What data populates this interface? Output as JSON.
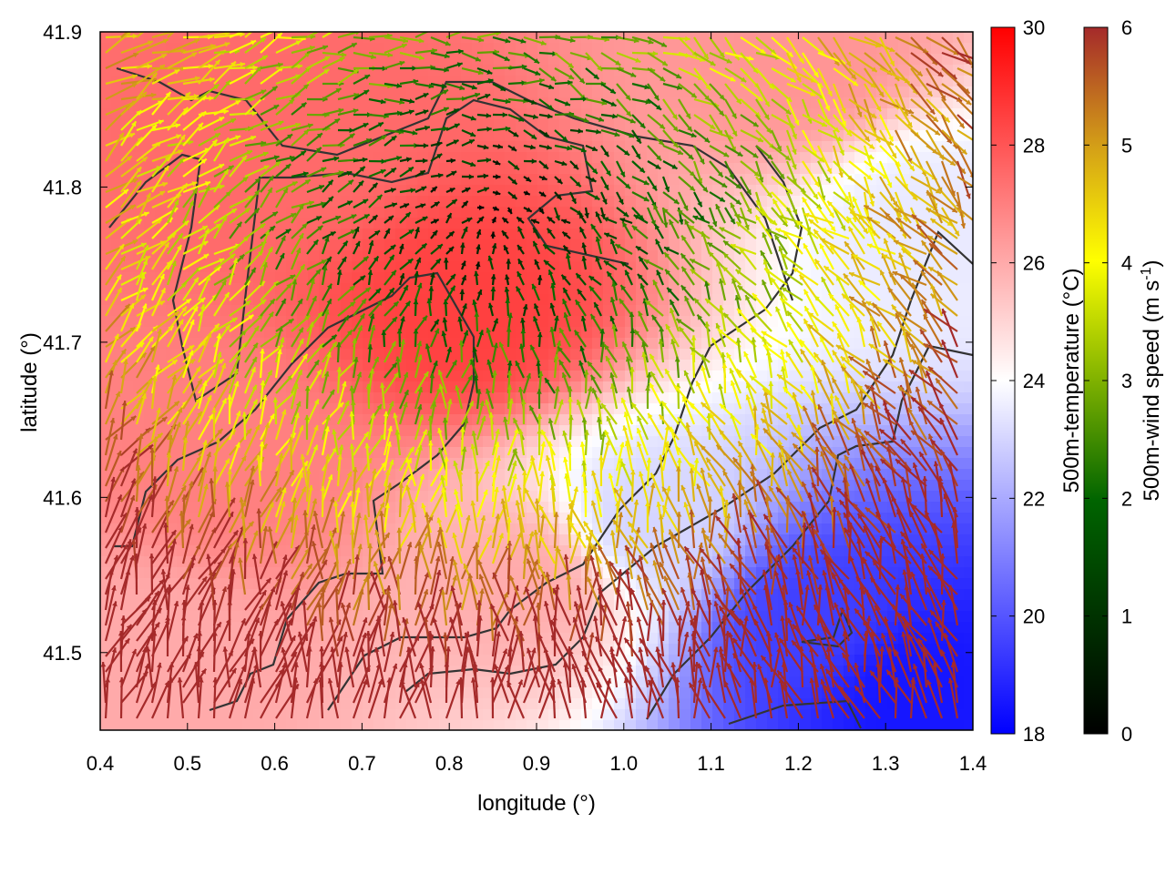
{
  "chart_data": {
    "type": "heatmap",
    "xlabel": "longitude (°)",
    "ylabel": "latitude (°)",
    "xlim": [
      0.4,
      1.4
    ],
    "ylim": [
      41.45,
      41.9
    ],
    "xticks": [
      "0.4",
      "0.5",
      "0.6",
      "0.7",
      "0.8",
      "0.9",
      "1.0",
      "1.1",
      "1.2",
      "1.3",
      "1.4"
    ],
    "yticks": [
      "41.5",
      "41.6",
      "41.7",
      "41.8",
      "41.9"
    ],
    "temperature_colorbar": {
      "label": "500m-temperature (°C)",
      "range": [
        18,
        30
      ],
      "ticks": [
        "18",
        "20",
        "22",
        "24",
        "26",
        "28",
        "30"
      ],
      "colors": [
        "#0000ff",
        "#ffffff",
        "#ff0000"
      ]
    },
    "wind_colorbar": {
      "label_main": "500m-wind speed (m s",
      "label_exponent": "-1",
      "label_close": ")",
      "range": [
        0,
        6
      ],
      "ticks": [
        "0",
        "1",
        "2",
        "3",
        "4",
        "5",
        "6"
      ],
      "colors": [
        "#000000",
        "#006400",
        "#ffff00",
        "#d4a017",
        "#a52a2a"
      ]
    },
    "temperature_centers": [
      {
        "lon": 0.82,
        "lat": 41.72,
        "t": 28.5
      },
      {
        "lon": 0.62,
        "lat": 41.83,
        "t": 27.5
      },
      {
        "lon": 0.55,
        "lat": 41.62,
        "t": 27.0
      },
      {
        "lon": 0.9,
        "lat": 41.55,
        "t": 26.0
      },
      {
        "lon": 1.2,
        "lat": 41.88,
        "t": 26.5
      },
      {
        "lon": 1.33,
        "lat": 41.48,
        "t": 18.5
      },
      {
        "lon": 1.22,
        "lat": 41.52,
        "t": 19.5
      },
      {
        "lon": 1.02,
        "lat": 41.58,
        "t": 23.0
      },
      {
        "lon": 1.35,
        "lat": 41.78,
        "t": 23.5
      },
      {
        "lon": 0.45,
        "lat": 41.5,
        "t": 26.0
      }
    ],
    "wind_field": {
      "calm_center": {
        "lon": 0.85,
        "lat": 41.78
      },
      "calm_radius_deg": 0.45,
      "max_speed": 6
    }
  }
}
